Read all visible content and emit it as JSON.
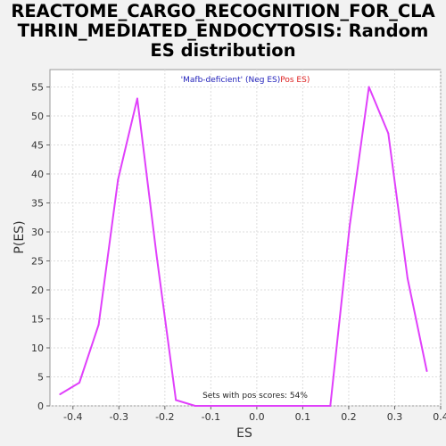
{
  "chart_data": {
    "type": "line",
    "title_lines": [
      "REACTOME_CARGO_RECOGNITION_FOR_CLA",
      "THRIN_MEDIATED_ENDOCYTOSIS: Random",
      "ES distribution"
    ],
    "legend": {
      "neg_label": "'Mafb-deficient' (Neg ES)",
      "pos_label": "Pos ES)",
      "neg_color": "#2222bb",
      "pos_color": "#dd2222",
      "placement": "top-center"
    },
    "annotation": "Sets with pos scores: 54%",
    "xlabel": "ES",
    "ylabel": "P(ES)",
    "xlim": [
      -0.45,
      0.4
    ],
    "ylim": [
      0,
      58
    ],
    "xticks": [
      -0.4,
      -0.3,
      -0.2,
      -0.1,
      0.0,
      0.1,
      0.2,
      0.3,
      0.4
    ],
    "xtick_labels": [
      "-0.4",
      "-0.3",
      "-0.2",
      "-0.1",
      "0.0",
      "0.1",
      "0.2",
      "0.3",
      "0.4"
    ],
    "yticks": [
      0,
      5,
      10,
      15,
      20,
      25,
      30,
      35,
      40,
      45,
      50,
      55
    ],
    "ytick_labels": [
      "0",
      "5",
      "10",
      "15",
      "20",
      "25",
      "30",
      "35",
      "40",
      "45",
      "50",
      "55"
    ],
    "grid": true,
    "line_color": "#e040fb",
    "series": [
      {
        "x": [
          -0.428,
          -0.386,
          -0.344,
          -0.302,
          -0.26,
          -0.218,
          -0.176,
          -0.134,
          -0.092,
          -0.05,
          -0.008,
          0.034,
          0.076,
          0.118,
          0.16,
          0.202,
          0.244,
          0.286,
          0.328,
          0.37
        ],
        "y": [
          2,
          4,
          14,
          39,
          53,
          26,
          1,
          0,
          0,
          0,
          0,
          0,
          0,
          0,
          0,
          31,
          55,
          47,
          22,
          6
        ]
      }
    ]
  }
}
